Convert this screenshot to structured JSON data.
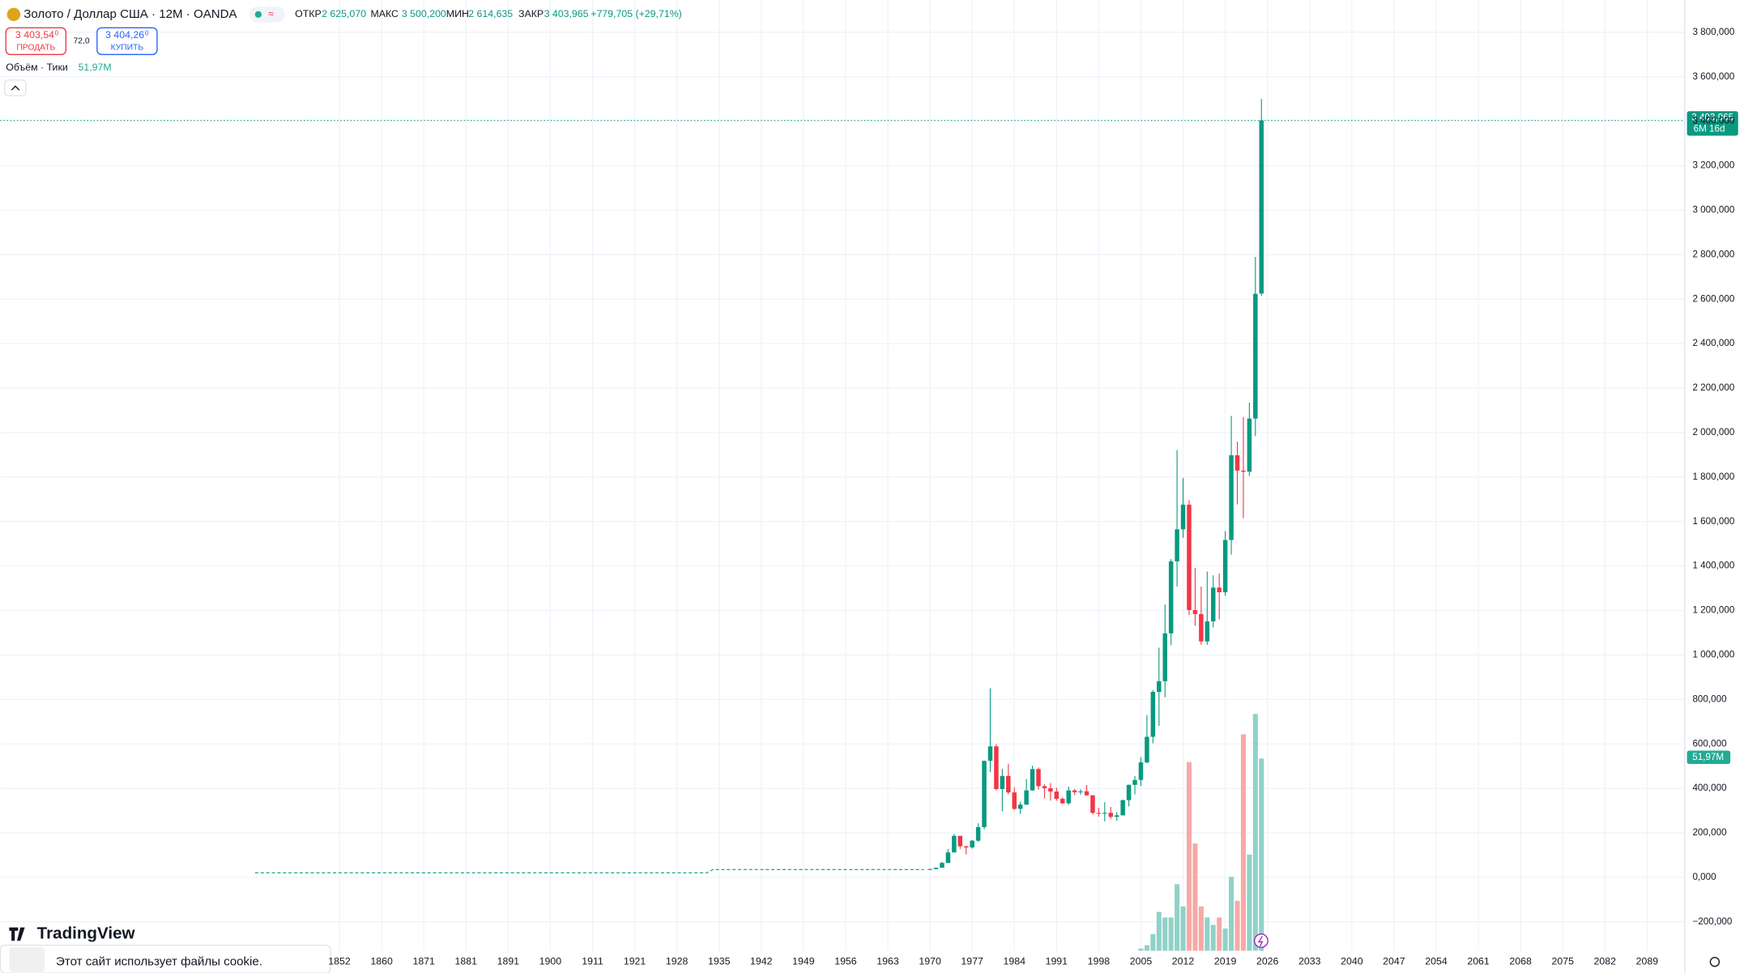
{
  "header": {
    "title": "Золото / Доллар США · 12M · OANDA",
    "badge": "≈",
    "open_label": "ОТКР",
    "open": "2 625,070",
    "high_label": "МАКС",
    "high": "3 500,200",
    "low_label": "МИН",
    "low": "2 614,635",
    "close_label": "ЗАКР",
    "close": "3 403,965",
    "change": "+779,705 (+29,71%)",
    "sell_price": "3 403,54",
    "sell_sup": "0",
    "sell_label": "ПРОДАТЬ",
    "spread": "72,0",
    "buy_price": "3 404,26",
    "buy_sup": "0",
    "buy_label": "КУПИТЬ",
    "volume_legend": "Объём · Тики",
    "volume_value": "51,97M",
    "countdown": "6M 16d",
    "brand": "TradingView",
    "cookie": "Этот сайт использует файлы cookie."
  },
  "chart_data": {
    "type": "candlestick",
    "up_color": "#089981",
    "down_color": "#f23645",
    "grid": true,
    "ylim": [
      -330000,
      3945000
    ],
    "yticks": [
      {
        "value": -200000,
        "label": "−200,000"
      },
      {
        "value": 0,
        "label": "0,000"
      },
      {
        "value": 200000,
        "label": "200,000"
      },
      {
        "value": 400000,
        "label": "400,000"
      },
      {
        "value": 600000,
        "label": "600,000"
      },
      {
        "value": 800000,
        "label": "800,000"
      },
      {
        "value": 1000000,
        "label": "1 000,000"
      },
      {
        "value": 1200000,
        "label": "1 200,000"
      },
      {
        "value": 1400000,
        "label": "1 400,000"
      },
      {
        "value": 1600000,
        "label": "1 600,000"
      },
      {
        "value": 1800000,
        "label": "1 800,000"
      },
      {
        "value": 2000000,
        "label": "2 000,000"
      },
      {
        "value": 2200000,
        "label": "2 200,000"
      },
      {
        "value": 2400000,
        "label": "2 400,000"
      },
      {
        "value": 2600000,
        "label": "2 600,000"
      },
      {
        "value": 2800000,
        "label": "2 800,000"
      },
      {
        "value": 3000000,
        "label": "3 000,000"
      },
      {
        "value": 3200000,
        "label": "3 200,000"
      },
      {
        "value": 3400000,
        "label": "3 400,000"
      },
      {
        "value": 3600000,
        "label": "3 600,000"
      },
      {
        "value": 3800000,
        "label": "3 800,000"
      }
    ],
    "xticks": [
      1852,
      1860,
      1871,
      1881,
      1891,
      1900,
      1911,
      1921,
      1928,
      1935,
      1942,
      1949,
      1956,
      1963,
      1970,
      1977,
      1984,
      1991,
      1998,
      2005,
      2012,
      2019,
      2026,
      2033,
      2040,
      2047,
      2054,
      2061,
      2068,
      2075,
      2082,
      2089
    ],
    "x": [
      1970,
      1971,
      1972,
      1973,
      1974,
      1975,
      1976,
      1977,
      1978,
      1979,
      1980,
      1981,
      1982,
      1983,
      1984,
      1985,
      1986,
      1987,
      1988,
      1989,
      1990,
      1991,
      1992,
      1993,
      1994,
      1995,
      1996,
      1997,
      1998,
      1999,
      2000,
      2001,
      2002,
      2003,
      2004,
      2005,
      2006,
      2007,
      2008,
      2009,
      2010,
      2011,
      2012,
      2013,
      2014,
      2015,
      2016,
      2017,
      2018,
      2019,
      2020,
      2021,
      2022,
      2023,
      2024,
      2025
    ],
    "open": [
      35200,
      37400,
      43500,
      64900,
      112000,
      186500,
      140000,
      134500,
      165000,
      226000,
      524000,
      589000,
      397000,
      456000,
      382000,
      308000,
      327000,
      391000,
      487000,
      410000,
      401000,
      386000,
      353000,
      333000,
      391000,
      383000,
      387000,
      369000,
      290000,
      288000,
      290000,
      272000,
      279000,
      347000,
      416000,
      438000,
      517000,
      632000,
      834000,
      882000,
      1097000,
      1421000,
      1565000,
      1676000,
      1202000,
      1184000,
      1061000,
      1151000,
      1303000,
      1282000,
      1517000,
      1898000,
      1829000,
      1824000,
      2063000,
      2625070
    ],
    "high": [
      39200,
      44000,
      70000,
      127000,
      195000,
      187000,
      140500,
      168000,
      243000,
      525000,
      850000,
      599000,
      488000,
      511000,
      405000,
      340000,
      442000,
      502000,
      494000,
      418000,
      424000,
      403000,
      360000,
      408000,
      397000,
      396000,
      415000,
      369500,
      313000,
      338000,
      317000,
      293000,
      350000,
      417000,
      456000,
      540000,
      730000,
      842000,
      1033000,
      1227000,
      1431000,
      1921000,
      1796000,
      1696000,
      1392000,
      1308000,
      1375000,
      1358000,
      1366000,
      1557000,
      2075000,
      1959000,
      2070000,
      2135000,
      2790000,
      3500200
    ],
    "low": [
      34800,
      37300,
      43500,
      63800,
      112000,
      128000,
      103000,
      129000,
      160000,
      216000,
      474000,
      391000,
      297000,
      374000,
      303000,
      285000,
      326000,
      390000,
      395000,
      355000,
      345000,
      344000,
      330000,
      326000,
      370000,
      372000,
      367000,
      283000,
      273000,
      252000,
      263000,
      255000,
      278000,
      319000,
      373000,
      411000,
      513000,
      603000,
      681000,
      810000,
      1044000,
      1308000,
      1527000,
      1180000,
      1131000,
      1046000,
      1046000,
      1124000,
      1160000,
      1266000,
      1451000,
      1677000,
      1615000,
      1805000,
      1984000,
      2614635
    ],
    "close": [
      37400,
      43500,
      64900,
      112000,
      186500,
      140000,
      134500,
      165000,
      226000,
      524000,
      589000,
      397000,
      456000,
      382000,
      308000,
      327000,
      391000,
      487000,
      410000,
      401000,
      386000,
      353000,
      333000,
      391000,
      383000,
      387000,
      369000,
      290000,
      288000,
      290000,
      272000,
      279000,
      347000,
      416000,
      438000,
      517000,
      632000,
      834000,
      882000,
      1097000,
      1421000,
      1565000,
      1676000,
      1202000,
      1184000,
      1061000,
      1151000,
      1303000,
      1282000,
      1517000,
      1898000,
      1829000,
      1824000,
      2063000,
      2624000,
      3403965
    ],
    "line": {
      "x": [
        1836,
        1933,
        1934,
        1969
      ],
      "values": [
        20670,
        20670,
        35000,
        35000
      ]
    },
    "y2lim": [
      0,
      257
    ],
    "volume": {
      "x": [
        2005,
        2006,
        2007,
        2008,
        2009,
        2010,
        2011,
        2012,
        2013,
        2014,
        2015,
        2016,
        2017,
        2018,
        2019,
        2020,
        2021,
        2022,
        2023,
        2024,
        2025
      ],
      "values": [
        0.6,
        1.5,
        4.5,
        10.5,
        9,
        9,
        18,
        12,
        51,
        29,
        12,
        9,
        7,
        9,
        6,
        20,
        13.5,
        58.5,
        26,
        64,
        51.97
      ],
      "up_color": "#8fd1c8",
      "down_color": "#f7a9a7"
    }
  }
}
